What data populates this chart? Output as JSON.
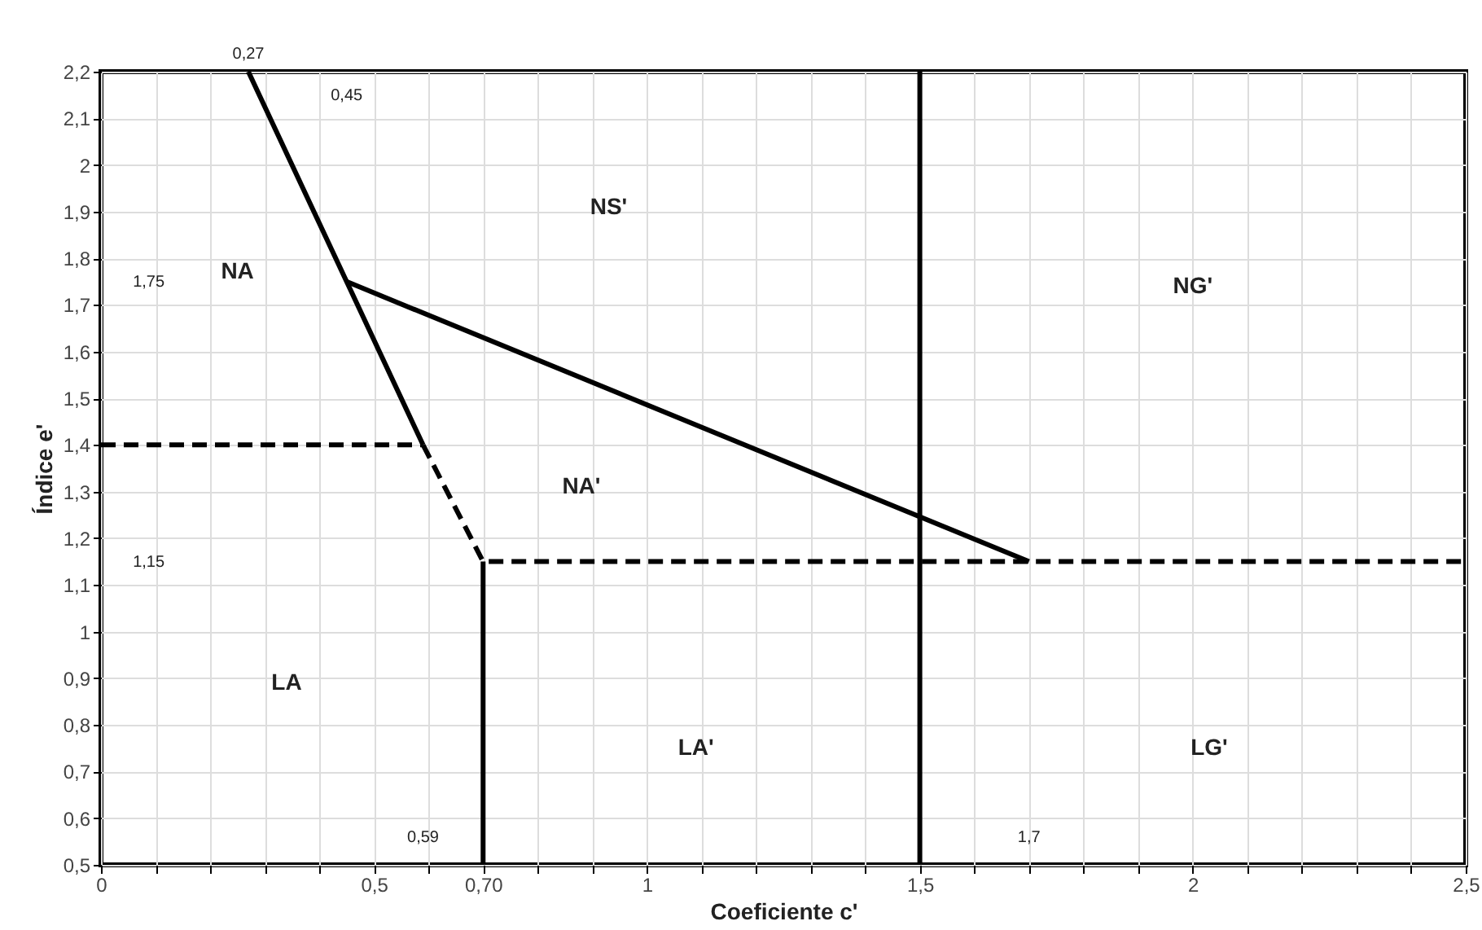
{
  "chart_data": {
    "type": "line",
    "xlabel": "Coeficiente c'",
    "ylabel": "Índice e'",
    "xlim": [
      0,
      2.5
    ],
    "ylim": [
      0.5,
      2.2
    ],
    "xticks": [
      0,
      {
        "value": 0.1,
        "label": null
      },
      {
        "value": 0.2,
        "label": null
      },
      {
        "value": 0.3,
        "label": null
      },
      {
        "value": 0.4,
        "label": null
      },
      {
        "value": 0.5,
        "label": "0,5"
      },
      {
        "value": 0.6,
        "label": null
      },
      {
        "value": 0.7,
        "label": "0,70"
      },
      {
        "value": 0.8,
        "label": null
      },
      {
        "value": 0.9,
        "label": null
      },
      1,
      {
        "value": 1.1,
        "label": null
      },
      {
        "value": 1.2,
        "label": null
      },
      {
        "value": 1.3,
        "label": null
      },
      {
        "value": 1.4,
        "label": null
      },
      {
        "value": 1.5,
        "label": "1,5"
      },
      {
        "value": 1.6,
        "label": null
      },
      {
        "value": 1.7,
        "label": null
      },
      {
        "value": 1.8,
        "label": null
      },
      {
        "value": 1.9,
        "label": null
      },
      2,
      {
        "value": 2.1,
        "label": null
      },
      {
        "value": 2.2,
        "label": null
      },
      {
        "value": 2.3,
        "label": null
      },
      {
        "value": 2.4,
        "label": null
      },
      {
        "value": 2.5,
        "label": "2,5"
      }
    ],
    "yticks": [
      {
        "value": 0.5,
        "label": "0,5"
      },
      {
        "value": 0.6,
        "label": "0,6"
      },
      {
        "value": 0.7,
        "label": "0,7"
      },
      {
        "value": 0.8,
        "label": "0,8"
      },
      {
        "value": 0.9,
        "label": "0,9"
      },
      1,
      {
        "value": 1.1,
        "label": "1,1"
      },
      {
        "value": 1.2,
        "label": "1,2"
      },
      {
        "value": 1.3,
        "label": "1,3"
      },
      {
        "value": 1.4,
        "label": "1,4"
      },
      {
        "value": 1.5,
        "label": "1,5"
      },
      {
        "value": 1.6,
        "label": "1,6"
      },
      {
        "value": 1.7,
        "label": "1,7"
      },
      {
        "value": 1.8,
        "label": "1,8"
      },
      {
        "value": 1.9,
        "label": "1,9"
      },
      2,
      {
        "value": 2.1,
        "label": "2,1"
      },
      {
        "value": 2.2,
        "label": "2,2"
      }
    ],
    "grid": true,
    "marker": "none",
    "series": [
      {
        "color": "#000000",
        "line_style": "solid",
        "x": [
          0.27,
          0.45,
          0.59
        ],
        "values": [
          2.2,
          1.75,
          1.4
        ]
      },
      {
        "color": "#000000",
        "line_style": "solid",
        "x": [
          0.45,
          1.7
        ],
        "values": [
          1.75,
          1.15
        ]
      },
      {
        "color": "#000000",
        "line_style": "dashed",
        "x": [
          0,
          0.59
        ],
        "values": [
          1.4,
          1.4
        ]
      },
      {
        "color": "#000000",
        "line_style": "dashed",
        "x": [
          0.59,
          0.7,
          2.5
        ],
        "values": [
          1.4,
          1.15,
          1.15
        ]
      },
      {
        "color": "#000000",
        "line_style": "solid",
        "x": [
          0.7,
          0.7
        ],
        "values": [
          1.15,
          0.5
        ]
      },
      {
        "color": "#000000",
        "line_style": "solid",
        "x": [
          1.5,
          1.5
        ],
        "values": [
          0.5,
          2.2
        ]
      }
    ],
    "annotations": [
      "NA",
      "NS'",
      "NG'",
      "NA'",
      "LA",
      "LA'",
      "LG'",
      {
        "text": "0,27",
        "x": 0.27,
        "y": 2.2
      },
      "0,45",
      "0,59",
      "1,7",
      "1,75",
      "1,15"
    ]
  }
}
